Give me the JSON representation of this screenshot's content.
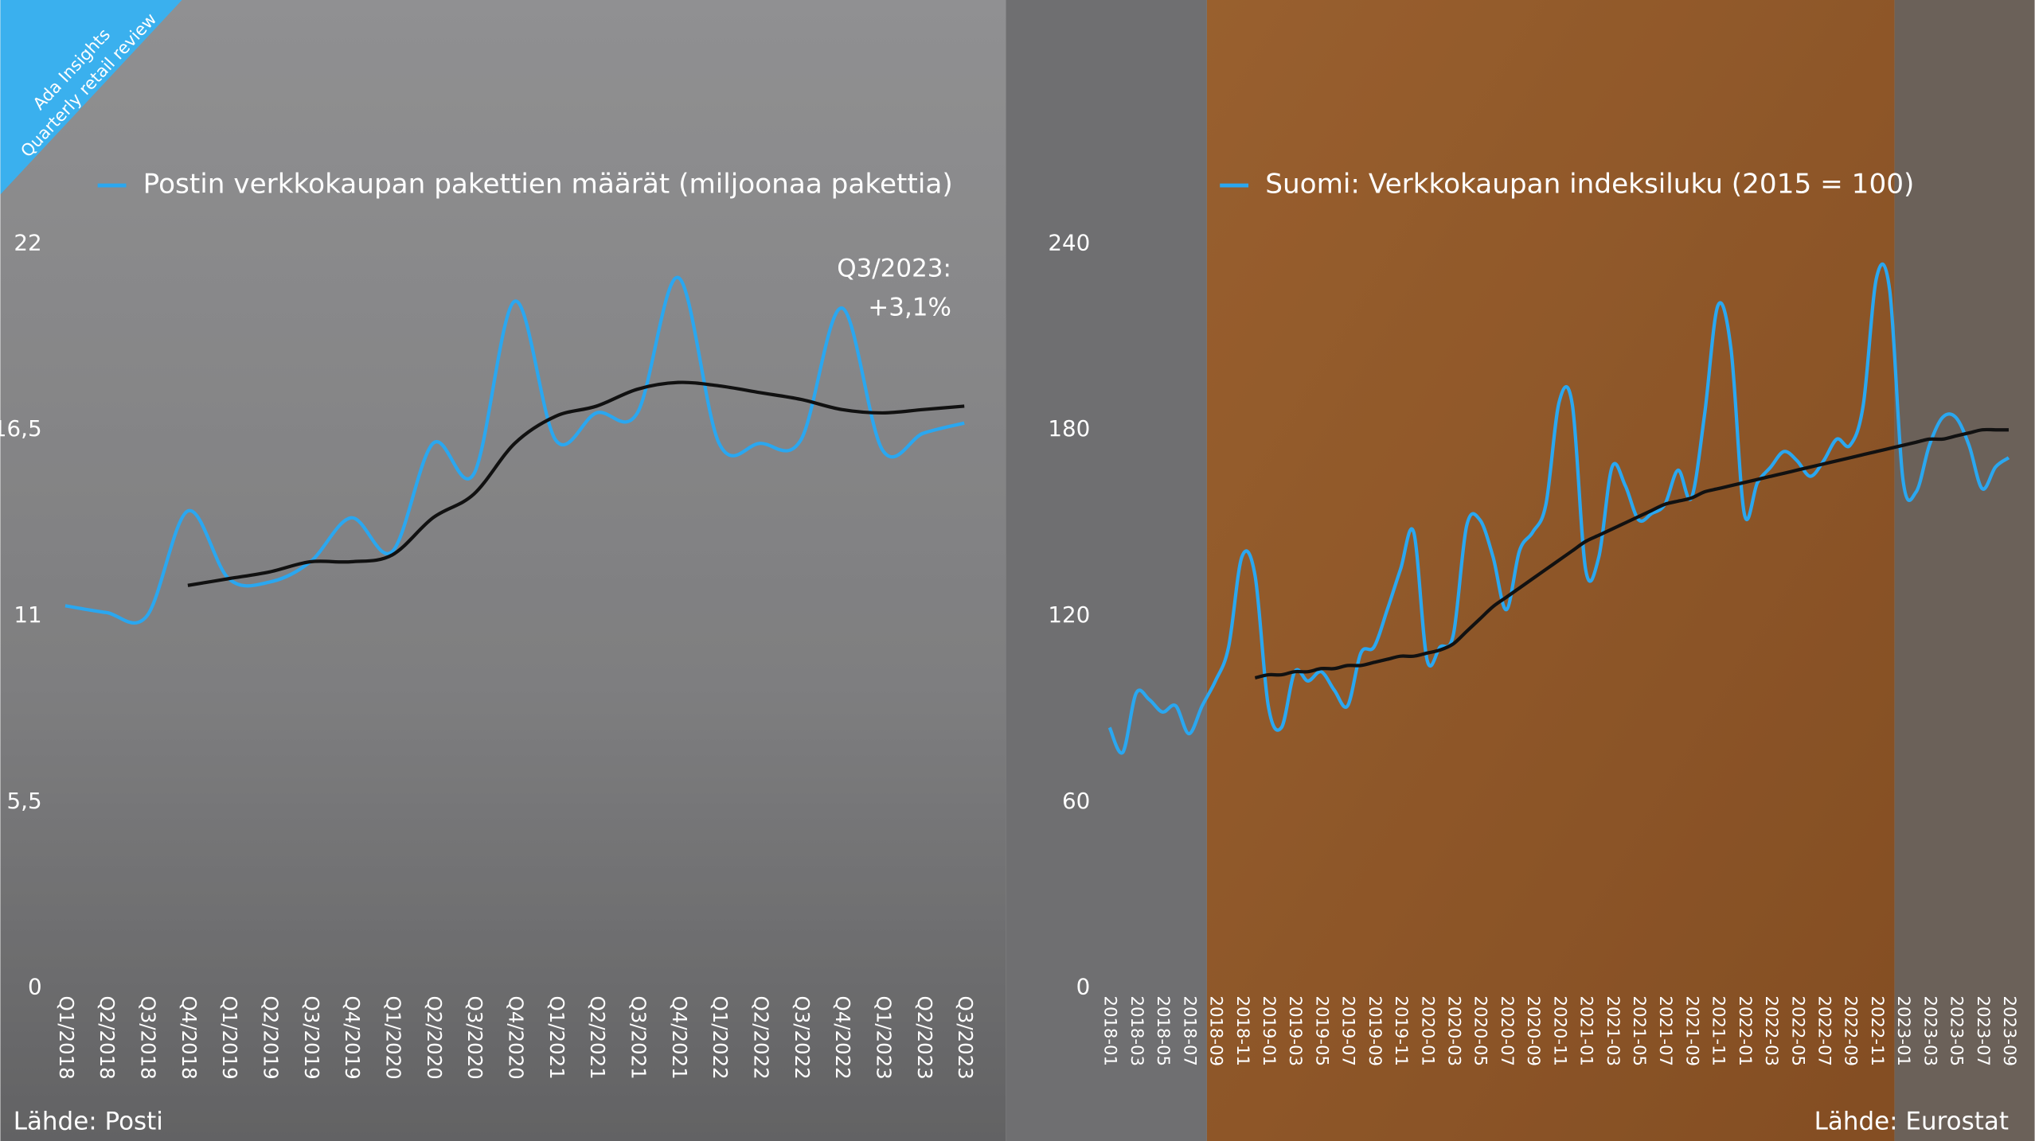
{
  "badge": {
    "title": "Ada Insights",
    "subtitle": "Quarterly retail review"
  },
  "chart_data": [
    {
      "type": "line",
      "categories": [
        "Q1/2018",
        "Q2/2018",
        "Q3/2018",
        "Q4/2018",
        "Q1/2019",
        "Q2/2019",
        "Q3/2019",
        "Q4/2019",
        "Q1/2020",
        "Q2/2020",
        "Q3/2020",
        "Q4/2020",
        "Q1/2021",
        "Q2/2021",
        "Q3/2021",
        "Q4/2021",
        "Q1/2022",
        "Q2/2022",
        "Q3/2022",
        "Q4/2022",
        "Q1/2023",
        "Q2/2023",
        "Q3/2023"
      ],
      "series": [
        {
          "name": "Postin verkkokaupan pakettien määrät (miljoonaa pakettia)",
          "color": "#2aa7f0",
          "values": [
            11.3,
            11.1,
            11.0,
            14.1,
            12.1,
            12.0,
            12.6,
            13.9,
            12.9,
            16.1,
            15.2,
            20.3,
            16.2,
            17.0,
            17.0,
            21.0,
            16.1,
            16.1,
            16.2,
            20.1,
            15.9,
            16.4,
            16.7
          ]
        },
        {
          "color": "#111111",
          "values": [
            null,
            null,
            null,
            11.9,
            12.1,
            12.3,
            12.6,
            12.6,
            12.8,
            13.9,
            14.6,
            16.1,
            16.9,
            17.2,
            17.7,
            17.9,
            17.8,
            17.6,
            17.4,
            17.1,
            17.0,
            17.1,
            17.2
          ]
        }
      ],
      "ylim": [
        0,
        22
      ],
      "yticks": [
        0,
        {
          "value": 5.5,
          "label": "5,5"
        },
        11,
        {
          "value": 16.5,
          "label": "16,5"
        },
        22
      ],
      "annotations": [
        "Q3/2023:",
        "+3,1%"
      ],
      "source": "Lähde: Posti"
    },
    {
      "type": "line",
      "categories": [
        "2018-01",
        null,
        "2018-03",
        null,
        "2018-05",
        null,
        "2018-07",
        null,
        "2018-09",
        null,
        "2018-11",
        null,
        "2019-01",
        null,
        "2019-03",
        null,
        "2019-05",
        null,
        "2019-07",
        null,
        "2019-09",
        null,
        "2019-11",
        null,
        "2020-01",
        null,
        "2020-03",
        null,
        "2020-05",
        null,
        "2020-07",
        null,
        "2020-09",
        null,
        "2020-11",
        null,
        "2021-01",
        null,
        "2021-03",
        null,
        "2021-05",
        null,
        "2021-07",
        null,
        "2021-09",
        null,
        "2021-11",
        null,
        "2022-01",
        null,
        "2022-03",
        null,
        "2022-05",
        null,
        "2022-07",
        null,
        "2022-09",
        null,
        "2022-11",
        null,
        "2023-01",
        null,
        "2023-03",
        null,
        "2023-05",
        null,
        "2023-07",
        null,
        "2023-09"
      ],
      "series": [
        {
          "name": "Suomi: Verkkokaupan indeksiluku (2015 = 100)",
          "color": "#2aa7f0",
          "values": [
            84,
            76,
            95,
            93,
            89,
            91,
            82,
            91,
            99,
            110,
            139,
            133,
            91,
            84,
            102,
            99,
            102,
            96,
            91,
            108,
            110,
            122,
            135,
            147,
            106,
            110,
            114,
            149,
            151,
            139,
            122,
            141,
            147,
            156,
            189,
            188,
            135,
            139,
            168,
            162,
            151,
            153,
            156,
            167,
            158,
            185,
            220,
            206,
            153,
            163,
            168,
            173,
            170,
            165,
            170,
            177,
            175,
            188,
            229,
            225,
            164,
            160,
            175,
            184,
            184,
            175,
            161,
            168,
            171
          ]
        },
        {
          "color": "#111111",
          "values": [
            null,
            null,
            null,
            null,
            null,
            null,
            null,
            null,
            null,
            null,
            null,
            100,
            101,
            101,
            102,
            102,
            103,
            103,
            104,
            104,
            105,
            106,
            107,
            107,
            108,
            109,
            111,
            115,
            119,
            123,
            126,
            129,
            132,
            135,
            138,
            141,
            144,
            146,
            148,
            150,
            152,
            154,
            156,
            157,
            158,
            160,
            161,
            162,
            163,
            164,
            165,
            166,
            167,
            168,
            169,
            170,
            171,
            172,
            173,
            174,
            175,
            176,
            177,
            177,
            178,
            179,
            180,
            180,
            180
          ]
        }
      ],
      "ylim": [
        0,
        240
      ],
      "yticks": [
        0,
        60,
        120,
        180,
        240
      ],
      "source": "Lähde: Eurostat"
    }
  ]
}
